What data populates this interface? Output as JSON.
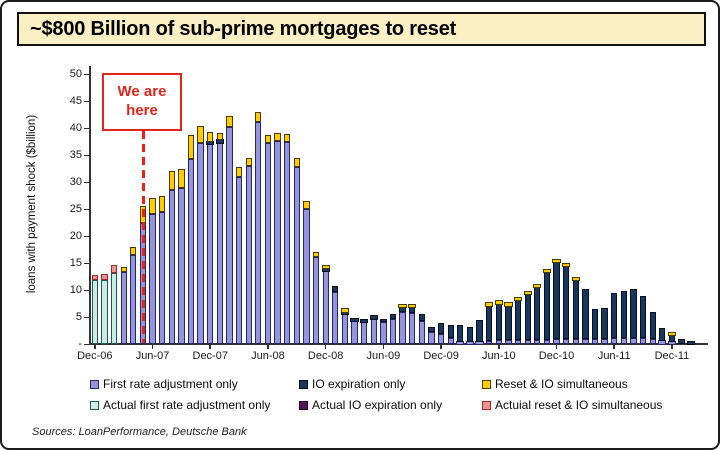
{
  "title": "~$800 Billion of sub-prime mortgages to reset",
  "annotation": {
    "line1": "We are",
    "line2": "here"
  },
  "sources": "Sources: LoanPerformance, Deutsche Bank",
  "colors": {
    "title_bg": "#FAF0C3",
    "red": "#E3261D",
    "first_rate": {
      "fill": "#9595DC",
      "border": "#26266B"
    },
    "io_exp": {
      "fill": "#17375E",
      "border": "#060F1E"
    },
    "reset_io": {
      "fill": "#FFCC00",
      "border": "#4A3B00"
    },
    "actual_first": {
      "fill": "#CBEBE4",
      "border": "#1E5A55"
    },
    "actual_io": {
      "fill": "#5C0C5C",
      "border": "#20031F"
    },
    "actual_reset": {
      "fill": "#EC9393",
      "border": "#9E2A23"
    }
  },
  "legend": [
    {
      "key": "first_rate",
      "label": "First rate adjustment only"
    },
    {
      "key": "io_exp",
      "label": "IO expiration only"
    },
    {
      "key": "reset_io",
      "label": "Reset & IO simultaneous"
    },
    {
      "key": "actual_first",
      "label": "Actual first rate adjustment only"
    },
    {
      "key": "actual_io",
      "label": "Actual IO expiration only"
    },
    {
      "key": "actual_reset",
      "label": "Actuial reset & IO simultaneous"
    }
  ],
  "chart_data": {
    "type": "bar",
    "stacked": true,
    "title": "~$800 Billion of sub-prime mortgages to reset",
    "ylabel": "loans with payment shock ($billion)",
    "ylim": [
      0,
      50
    ],
    "y_ticks": [
      5,
      10,
      15,
      20,
      25,
      30,
      35,
      40,
      45,
      50
    ],
    "y_zero_label": "-",
    "grid": false,
    "legend_position": "bottom",
    "we_are_here_between": [
      "May-07",
      "Jun-07"
    ],
    "categories": [
      "Dec-06",
      "Jan-07",
      "Feb-07",
      "Mar-07",
      "Apr-07",
      "May-07",
      "Jun-07",
      "Jul-07",
      "Aug-07",
      "Sep-07",
      "Oct-07",
      "Nov-07",
      "Dec-07",
      "Jan-08",
      "Feb-08",
      "Mar-08",
      "Apr-08",
      "May-08",
      "Jun-08",
      "Jul-08",
      "Aug-08",
      "Sep-08",
      "Oct-08",
      "Nov-08",
      "Dec-08",
      "Jan-09",
      "Feb-09",
      "Mar-09",
      "Apr-09",
      "May-09",
      "Jun-09",
      "Jul-09",
      "Aug-09",
      "Sep-09",
      "Oct-09",
      "Nov-09",
      "Dec-09",
      "Jan-10",
      "Feb-10",
      "Mar-10",
      "Apr-10",
      "May-10",
      "Jun-10",
      "Jul-10",
      "Aug-10",
      "Sep-10",
      "Oct-10",
      "Nov-10",
      "Dec-10",
      "Jan-11",
      "Feb-11",
      "Mar-11",
      "Apr-11",
      "May-11",
      "Jun-11",
      "Jul-11",
      "Aug-11",
      "Sep-11",
      "Oct-11",
      "Nov-11",
      "Dec-11",
      "Jan-12",
      "Feb-12"
    ],
    "x_tick_labels": [
      "Dec-06",
      "Jun-07",
      "Dec-07",
      "Jun-08",
      "Dec-08",
      "Jun-09",
      "Dec-09",
      "Jun-10",
      "Dec-10",
      "Jun-11",
      "Dec-11"
    ],
    "x_tick_indices": [
      0,
      6,
      12,
      18,
      24,
      30,
      36,
      42,
      48,
      54,
      60
    ],
    "series": [
      {
        "key": "actual_first",
        "name": "Actual first rate adjustment only",
        "values": [
          11.8,
          11.9,
          13.2,
          0,
          0,
          0,
          0,
          0,
          0,
          0,
          0,
          0,
          0,
          0,
          0,
          0,
          0,
          0,
          0,
          0,
          0,
          0,
          0,
          0,
          0,
          0,
          0,
          0,
          0,
          0,
          0,
          0,
          0,
          0,
          0,
          0,
          0,
          0,
          0,
          0,
          0,
          0,
          0,
          0,
          0,
          0,
          0,
          0,
          0,
          0,
          0,
          0,
          0,
          0,
          0,
          0,
          0,
          0,
          0,
          0,
          0,
          0,
          0
        ]
      },
      {
        "key": "first_rate",
        "name": "First rate adjustment only",
        "values": [
          0,
          0,
          0,
          13.3,
          16.5,
          22.5,
          24.0,
          24.5,
          28.5,
          28.8,
          34.2,
          37.2,
          37.0,
          37.3,
          40.2,
          31.0,
          32.9,
          41.1,
          37.3,
          37.6,
          37.4,
          32.7,
          25.0,
          16.2,
          13.6,
          9.7,
          5.5,
          4.3,
          4.0,
          4.6,
          4.1,
          4.7,
          5.9,
          5.8,
          4.3,
          2.3,
          1.9,
          1.2,
          0.4,
          0.3,
          0.4,
          0.6,
          0.7,
          0.7,
          0.7,
          0.8,
          0.8,
          0.8,
          0.9,
          0.9,
          0.9,
          0.9,
          1.0,
          1.0,
          1.2,
          1.2,
          1.2,
          1.1,
          0.9,
          0.5,
          0.3,
          0,
          0
        ]
      },
      {
        "key": "io_exp",
        "name": "IO expiration only",
        "values": [
          0,
          0,
          0,
          0,
          0,
          0,
          0,
          0,
          0,
          0,
          0,
          0,
          0.4,
          0.3,
          0,
          0,
          0,
          0,
          0,
          0,
          0,
          0,
          0,
          0,
          0.3,
          1.0,
          0.5,
          0.2,
          0.2,
          0.5,
          0.6,
          0.8,
          0.9,
          1.1,
          1.2,
          0.9,
          2.0,
          2.3,
          3.2,
          2.8,
          4.1,
          6.5,
          6.8,
          6.4,
          7.4,
          8.5,
          9.8,
          12.5,
          14.2,
          13.5,
          10.9,
          9.2,
          5.4,
          5.7,
          8.3,
          8.7,
          9.0,
          7.8,
          5.1,
          2.4,
          1.3,
          1.0,
          0.4
        ]
      },
      {
        "key": "actual_io",
        "name": "Actual IO expiration only",
        "values": [
          0,
          0,
          0,
          0,
          0,
          0,
          0,
          0,
          0,
          0,
          0,
          0,
          0,
          0,
          0,
          0,
          0,
          0,
          0,
          0,
          0,
          0,
          0,
          0,
          0,
          0,
          0,
          0,
          0,
          0,
          0,
          0,
          0,
          0,
          0,
          0,
          0,
          0,
          0,
          0,
          0,
          0,
          0,
          0,
          0,
          0,
          0,
          0,
          0,
          0,
          0,
          0,
          0,
          0,
          0,
          0,
          0,
          0,
          0,
          0,
          0,
          0,
          0
        ]
      },
      {
        "key": "reset_io",
        "name": "Reset & IO simultaneous",
        "values": [
          0,
          0,
          0,
          0.9,
          1.5,
          3.0,
          3.0,
          3.0,
          3.5,
          3.7,
          4.5,
          3.2,
          1.9,
          1.4,
          2.0,
          1.7,
          1.6,
          1.9,
          1.4,
          1.4,
          1.5,
          1.7,
          1.5,
          0.8,
          0.4,
          0,
          0.3,
          0,
          0,
          0,
          0,
          0,
          0.3,
          0.3,
          0,
          0,
          0,
          0,
          0,
          0,
          0,
          0.2,
          0.2,
          0.2,
          0.2,
          0.2,
          0.2,
          0.3,
          0.3,
          0.3,
          0.2,
          0,
          0,
          0,
          0,
          0,
          0,
          0,
          0,
          0,
          0.2,
          0,
          0
        ]
      },
      {
        "key": "actual_reset",
        "name": "Actuial reset & IO simultaneous",
        "values": [
          1.0,
          1.0,
          1.4,
          0,
          0,
          0,
          0,
          0,
          0,
          0,
          0,
          0,
          0,
          0,
          0,
          0,
          0,
          0,
          0,
          0,
          0,
          0,
          0,
          0,
          0,
          0,
          0,
          0,
          0,
          0,
          0,
          0,
          0,
          0,
          0,
          0,
          0,
          0,
          0,
          0,
          0,
          0,
          0,
          0,
          0,
          0,
          0,
          0,
          0,
          0,
          0,
          0,
          0,
          0,
          0,
          0,
          0,
          0,
          0,
          0,
          0,
          0,
          0
        ]
      }
    ]
  }
}
